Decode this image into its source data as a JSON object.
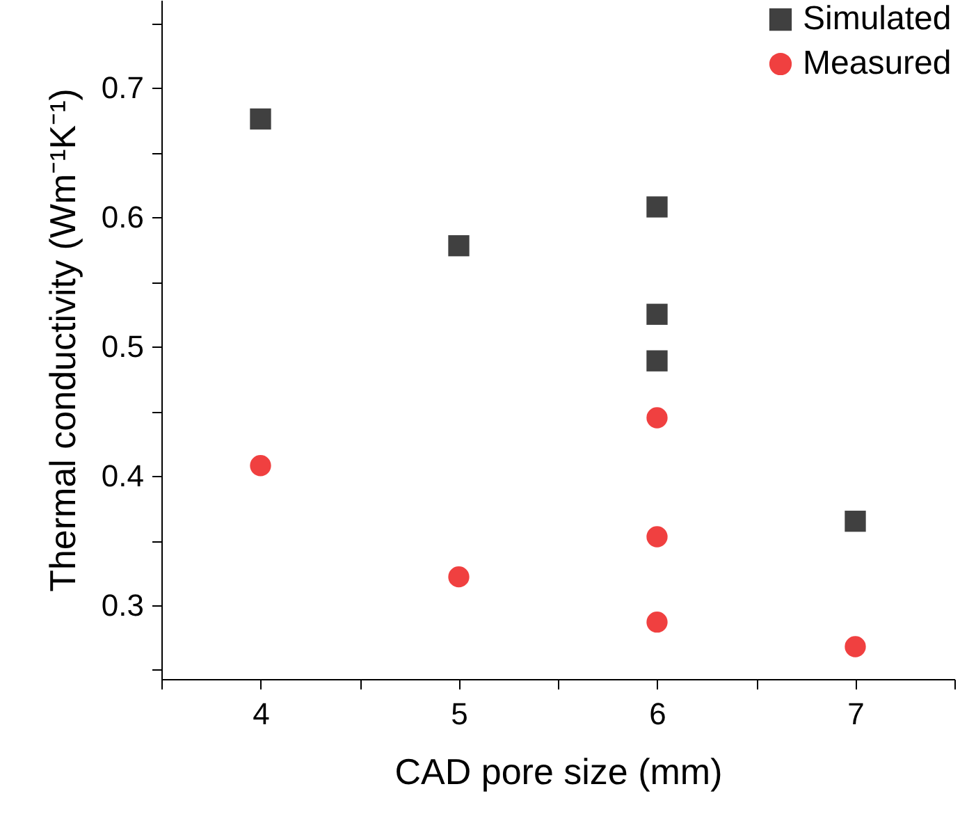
{
  "chart_data": {
    "type": "scatter",
    "xlabel": "CAD pore size (mm)",
    "ylabel": "Thermal conductivity (Wm⁻¹K⁻¹)",
    "series": [
      {
        "name": "Simulated",
        "color": "#404040",
        "marker": "square",
        "x": [
          4,
          5,
          6,
          6,
          6,
          7
        ],
        "values": [
          0.676,
          0.578,
          0.608,
          0.525,
          0.489,
          0.365
        ]
      },
      {
        "name": "Measured",
        "color": "#f04040",
        "marker": "circle",
        "x": [
          4,
          5,
          6,
          6,
          6,
          7
        ],
        "values": [
          0.408,
          0.322,
          0.445,
          0.353,
          0.287,
          0.268
        ]
      }
    ],
    "xlim": [
      3.5,
      7.5
    ],
    "ylim": [
      0.243,
      0.768
    ],
    "xticks": [
      {
        "value": 3.5,
        "label": null
      },
      4,
      {
        "value": 4.5,
        "label": null
      },
      5,
      {
        "value": 5.5,
        "label": null
      },
      6,
      {
        "value": 6.5,
        "label": null
      },
      7,
      {
        "value": 7.5,
        "label": null
      }
    ],
    "yticks": [
      {
        "value": 0.25,
        "label": null
      },
      0.3,
      {
        "value": 0.35,
        "label": null
      },
      0.4,
      {
        "value": 0.45,
        "label": null
      },
      0.5,
      {
        "value": 0.55,
        "label": null
      },
      0.6,
      {
        "value": 0.65,
        "label": null
      },
      0.7,
      {
        "value": 0.75,
        "label": null
      }
    ],
    "legend": "top right",
    "grid": false
  }
}
